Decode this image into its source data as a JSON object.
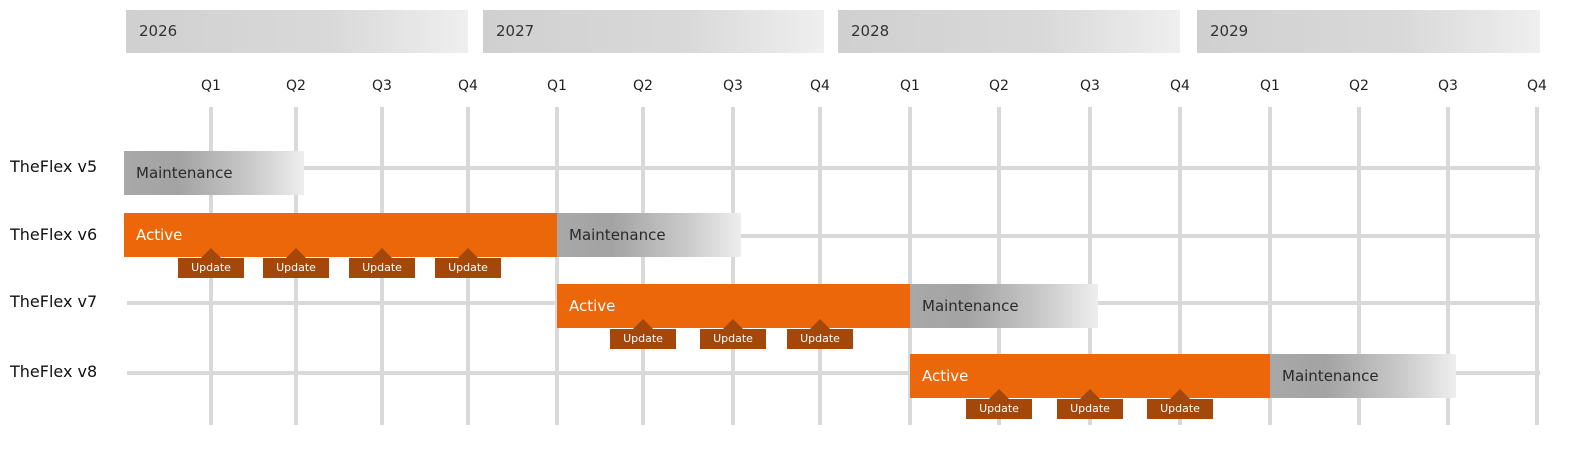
{
  "years": [
    "2026",
    "2027",
    "2028",
    "2029"
  ],
  "quarters": [
    "Q1",
    "Q2",
    "Q3",
    "Q4"
  ],
  "colors": {
    "active": "#ec670a",
    "update": "#a3480a",
    "maintenance": "#a8a8a8",
    "grid": "#d9d9d9"
  },
  "update_label": "Update",
  "rows": [
    {
      "label": "TheFlex v5",
      "phases": [
        {
          "type": "maintenance",
          "label": "Maintenance",
          "from": "start",
          "to": "2026 Q2"
        }
      ],
      "updates": []
    },
    {
      "label": "TheFlex v6",
      "phases": [
        {
          "type": "active",
          "label": "Active",
          "from": "start",
          "to": "2027 Q1"
        },
        {
          "type": "maintenance",
          "label": "Maintenance",
          "from": "2027 Q1",
          "to": "2027 Q3"
        }
      ],
      "updates": [
        "2026 Q1",
        "2026 Q2",
        "2026 Q3",
        "2026 Q4"
      ]
    },
    {
      "label": "TheFlex v7",
      "phases": [
        {
          "type": "active",
          "label": "Active",
          "from": "2027 Q1",
          "to": "2028 Q1"
        },
        {
          "type": "maintenance",
          "label": "Maintenance",
          "from": "2028 Q1",
          "to": "2028 Q3"
        }
      ],
      "updates": [
        "2027 Q2",
        "2027 Q3",
        "2027 Q4"
      ]
    },
    {
      "label": "TheFlex v8",
      "phases": [
        {
          "type": "active",
          "label": "Active",
          "from": "2028 Q1",
          "to": "2029 Q1"
        },
        {
          "type": "maintenance",
          "label": "Maintenance",
          "from": "2029 Q1",
          "to": "2029 Q3"
        }
      ],
      "updates": [
        "2028 Q2",
        "2028 Q3",
        "2028 Q4"
      ]
    }
  ]
}
